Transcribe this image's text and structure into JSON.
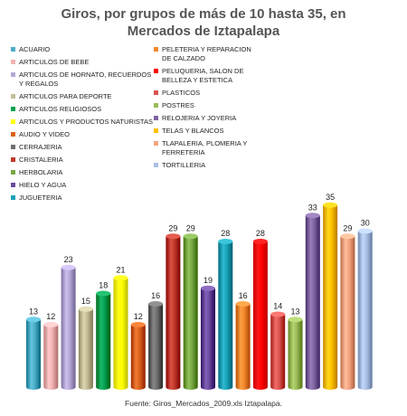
{
  "title_line1": "Giros, por grupos de más de 10 hasta 35, en",
  "title_line2": "Mercados de Iztapalapa",
  "source": "Fuente: Giros_Mercados_2009.xls Iztapalapa.",
  "chart_data": {
    "type": "bar",
    "title": "Giros, por grupos de más de 10 hasta 35, en Mercados de Iztapalapa",
    "legend_position": "top-left",
    "grid": false,
    "ylim": [
      0,
      35
    ],
    "categories": [
      "ACUARIO",
      "ARTICULOS DE BEBE",
      "ARTICULOS DE HORNATO, RECUERDOS Y REGALOS",
      "ARTICULOS PARA DEPORTE",
      "ARTICULOS RELIGIOSOS",
      "ARTICULOS Y PRODUCTOS NATURISTAS",
      "AUDIO Y VIDEO",
      "CERRAJERIA",
      "CRISTALERIA",
      "HERBOLARIA",
      "HIELO Y AGUA",
      "JUGUETERIA",
      "PELETERIA Y REPARACION DE CALZADO",
      "PELUQUERIA, SALON DE BELLEZA Y ESTETICA",
      "PLASTICOS",
      "POSTRES",
      "RELOJERIA Y JOYERIA",
      "TELAS Y BLANCOS",
      "TLAPALERIA, PLOMERIA Y FERRETERIA",
      "TORTILLERIA"
    ],
    "values": [
      13,
      12,
      23,
      15,
      18,
      21,
      12,
      16,
      29,
      29,
      19,
      28,
      16,
      28,
      14,
      13,
      33,
      35,
      29,
      30
    ],
    "colors": [
      "#4bacc6",
      "#f2b1b1",
      "#b4a7d6",
      "#c4bd97",
      "#00a050",
      "#ffff00",
      "#d9631a",
      "#6e6e6e",
      "#c0392b",
      "#77a843",
      "#6a4a9e",
      "#17a2b8",
      "#f0862a",
      "#ff0000",
      "#d9534f",
      "#9bbb59",
      "#8064a2",
      "#ffc000",
      "#f4a582",
      "#a9bfe3"
    ]
  }
}
